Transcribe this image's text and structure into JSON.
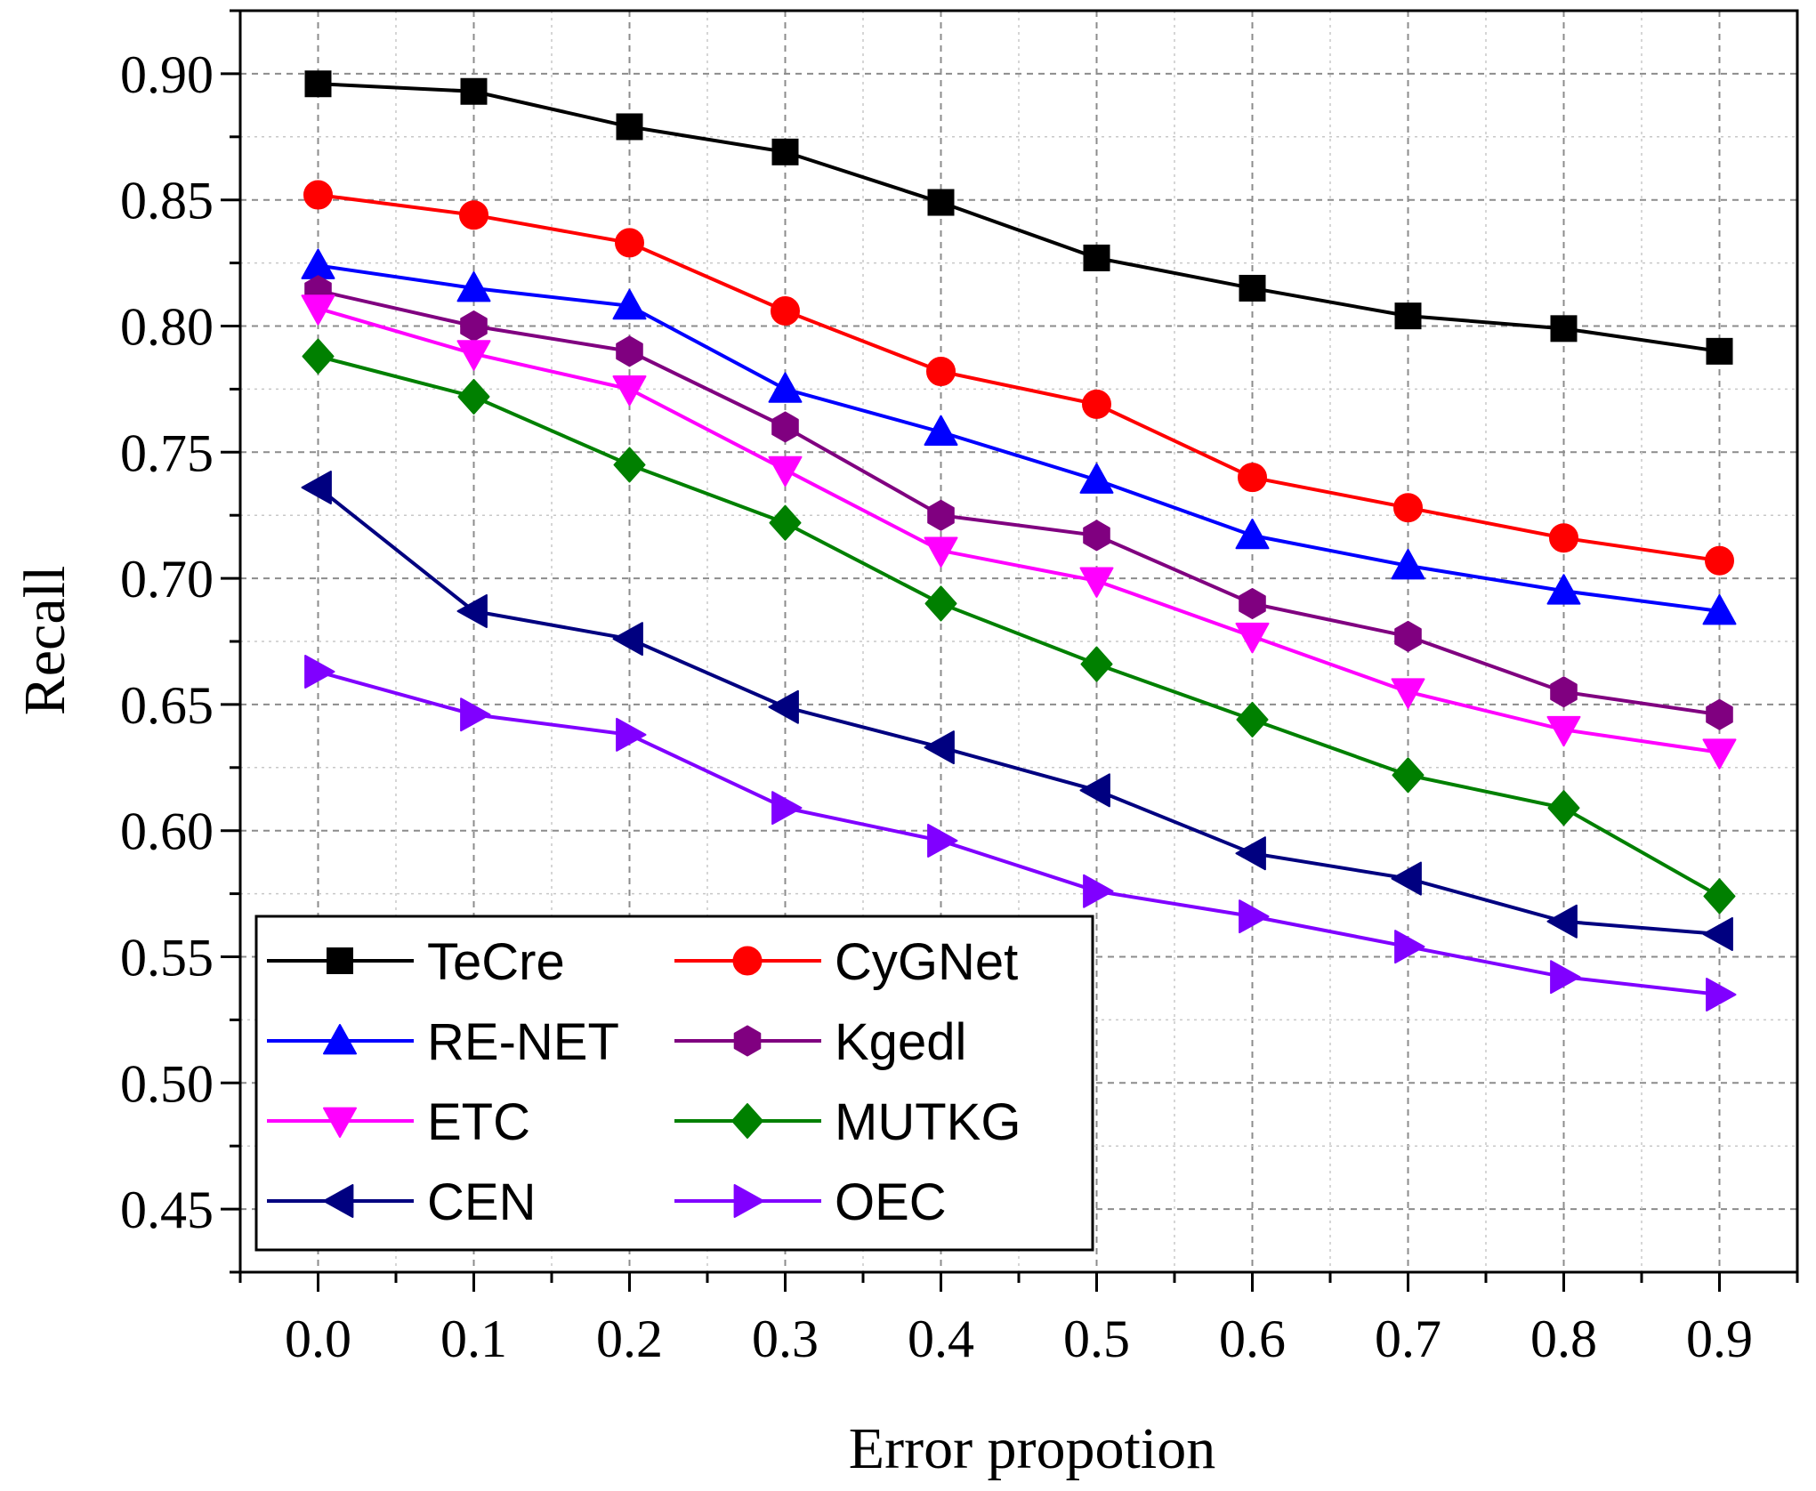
{
  "chart_data": {
    "type": "line",
    "xlabel": "Error propotion",
    "ylabel": "Recall",
    "x": [
      0.0,
      0.1,
      0.2,
      0.3,
      0.4,
      0.5,
      0.6,
      0.7,
      0.8,
      0.9
    ],
    "x_tick_labels": [
      "0.0",
      "0.1",
      "0.2",
      "0.3",
      "0.4",
      "0.5",
      "0.6",
      "0.7",
      "0.8",
      "0.9"
    ],
    "y_ticks": [
      0.45,
      0.5,
      0.55,
      0.6,
      0.65,
      0.7,
      0.75,
      0.8,
      0.85,
      0.9
    ],
    "y_tick_labels": [
      "0.45",
      "0.50",
      "0.55",
      "0.60",
      "0.65",
      "0.70",
      "0.75",
      "0.80",
      "0.85",
      "0.90"
    ],
    "xlim": [
      -0.05,
      0.95
    ],
    "ylim": [
      0.425,
      0.925
    ],
    "grid": true,
    "legend_position": "bottom-left",
    "series": [
      {
        "name": "TeCre",
        "color": "#000000",
        "marker": "square",
        "values": [
          0.896,
          0.893,
          0.879,
          0.869,
          0.849,
          0.827,
          0.815,
          0.804,
          0.799,
          0.79
        ]
      },
      {
        "name": "CyGNet",
        "color": "#ff0000",
        "marker": "circle",
        "values": [
          0.852,
          0.844,
          0.833,
          0.806,
          0.782,
          0.769,
          0.74,
          0.728,
          0.716,
          0.707
        ]
      },
      {
        "name": "RE-NET",
        "color": "#0000ff",
        "marker": "triangle-up",
        "values": [
          0.824,
          0.815,
          0.808,
          0.775,
          0.758,
          0.739,
          0.717,
          0.705,
          0.695,
          0.687
        ]
      },
      {
        "name": "Kgedl",
        "color": "#800080",
        "marker": "hexagon",
        "values": [
          0.814,
          0.8,
          0.79,
          0.76,
          0.725,
          0.717,
          0.69,
          0.677,
          0.655,
          0.646
        ]
      },
      {
        "name": "ETC",
        "color": "#ff00ff",
        "marker": "triangle-down",
        "values": [
          0.807,
          0.789,
          0.775,
          0.743,
          0.711,
          0.699,
          0.677,
          0.655,
          0.64,
          0.631
        ]
      },
      {
        "name": "MUTKG",
        "color": "#008000",
        "marker": "diamond",
        "values": [
          0.788,
          0.772,
          0.745,
          0.722,
          0.69,
          0.666,
          0.644,
          0.622,
          0.609,
          0.574
        ]
      },
      {
        "name": "CEN",
        "color": "#000080",
        "marker": "triangle-left",
        "values": [
          0.736,
          0.687,
          0.676,
          0.649,
          0.633,
          0.616,
          0.591,
          0.581,
          0.564,
          0.559
        ]
      },
      {
        "name": "OEC",
        "color": "#8000ff",
        "marker": "triangle-right",
        "values": [
          0.663,
          0.646,
          0.638,
          0.609,
          0.596,
          0.576,
          0.566,
          0.554,
          0.542,
          0.535
        ]
      }
    ]
  }
}
